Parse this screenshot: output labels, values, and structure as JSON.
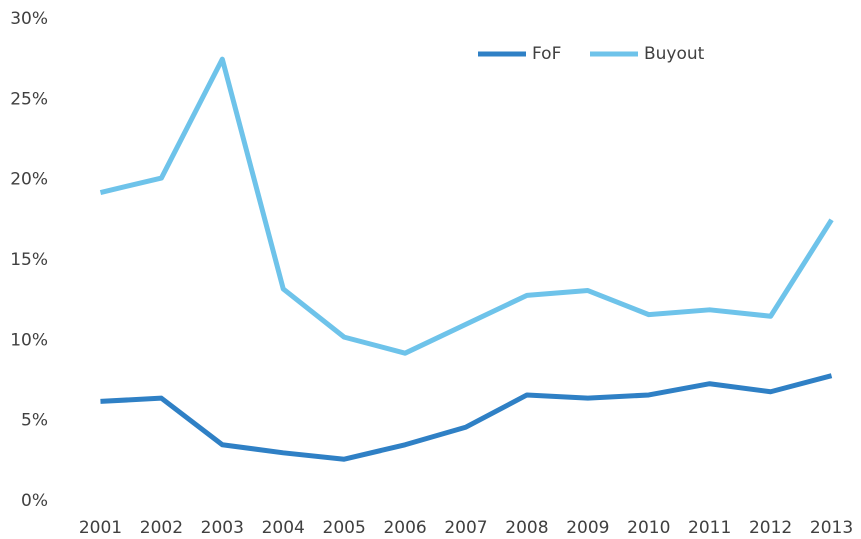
{
  "chart_data": {
    "type": "line",
    "categories": [
      "2001",
      "2002",
      "2003",
      "2004",
      "2005",
      "2006",
      "2007",
      "2008",
      "2009",
      "2010",
      "2011",
      "2012",
      "2013"
    ],
    "series": [
      {
        "name": "FoF",
        "color": "#2f80c5",
        "values": [
          6.2,
          6.4,
          3.5,
          3.0,
          2.6,
          3.5,
          4.6,
          6.6,
          6.4,
          6.6,
          7.3,
          6.8,
          7.8
        ]
      },
      {
        "name": "Buyout",
        "color": "#6ec3ea",
        "values": [
          19.2,
          20.1,
          27.5,
          13.2,
          10.2,
          9.2,
          11.0,
          12.8,
          13.1,
          11.6,
          11.9,
          11.5,
          17.5
        ]
      }
    ],
    "ylim": [
      0,
      30
    ],
    "yticks": [
      {
        "value": 0,
        "label": "0%"
      },
      {
        "value": 5,
        "label": "5%"
      },
      {
        "value": 10,
        "label": "10%"
      },
      {
        "value": 15,
        "label": "15%"
      },
      {
        "value": 20,
        "label": "20%"
      },
      {
        "value": 25,
        "label": "25%"
      },
      {
        "value": 30,
        "label": "30%"
      }
    ],
    "grid": false,
    "legend": "top-right"
  }
}
